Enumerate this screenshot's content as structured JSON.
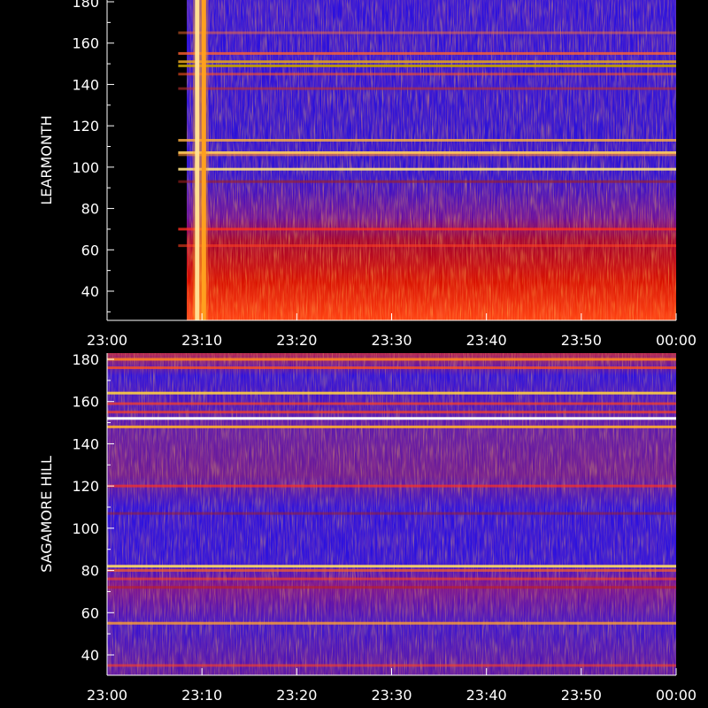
{
  "chart_data": [
    {
      "type": "heatmap",
      "name": "learmonth",
      "ylabel": "LEARMONTH",
      "xlim": [
        "23:00",
        "00:00"
      ],
      "ylim": [
        25,
        180
      ],
      "x_ticks": [
        "23:00",
        "23:10",
        "23:20",
        "23:30",
        "23:40",
        "23:50",
        "00:00"
      ],
      "y_ticks": [
        40,
        60,
        80,
        100,
        120,
        140,
        160,
        180
      ],
      "colors": {
        "low": "#2a0fd8",
        "mid": "#c00000",
        "high": "#ffa020",
        "peak": "#ffffd0"
      },
      "no_data_until": "23:07.5",
      "burst_times": [
        "23:09.5",
        "23:10.2"
      ],
      "bands": [
        {
          "freq": 165,
          "color": "#ff7030",
          "opacity": 0.5
        },
        {
          "freq": 155,
          "color": "#ff6030",
          "opacity": 0.8
        },
        {
          "freq": 151,
          "color": "#e0a020",
          "opacity": 0.9
        },
        {
          "freq": 149,
          "color": "#c0a000",
          "opacity": 0.9
        },
        {
          "freq": 145,
          "color": "#ff5020",
          "opacity": 0.6
        },
        {
          "freq": 138,
          "color": "#c03030",
          "opacity": 0.6
        },
        {
          "freq": 113,
          "color": "#ffb040",
          "opacity": 0.8
        },
        {
          "freq": 107,
          "color": "#ffd060",
          "opacity": 0.9
        },
        {
          "freq": 106,
          "color": "#ff9030",
          "opacity": 0.6
        },
        {
          "freq": 99,
          "color": "#ffe080",
          "opacity": 0.9
        },
        {
          "freq": 93,
          "color": "#a02020",
          "opacity": 0.6
        },
        {
          "freq": 70,
          "color": "#ff3020",
          "opacity": 0.8
        },
        {
          "freq": 62,
          "color": "#ff4020",
          "opacity": 0.6
        }
      ]
    },
    {
      "type": "heatmap",
      "name": "sagamore-hill",
      "ylabel": "SAGAMORE  HILL",
      "xlim": [
        "23:00",
        "00:00"
      ],
      "ylim": [
        25,
        180
      ],
      "x_ticks": [
        "23:00",
        "23:10",
        "23:20",
        "23:30",
        "23:40",
        "23:50",
        "00:00"
      ],
      "y_ticks": [
        40,
        60,
        80,
        100,
        120,
        140,
        160,
        180
      ],
      "colors": {
        "low": "#2a0fd8",
        "mid": "#c00000",
        "high": "#ffa020",
        "peak": "#ffffd0"
      },
      "bands": [
        {
          "freq": 180,
          "color": "#ff8020",
          "opacity": 0.9
        },
        {
          "freq": 176,
          "color": "#ff5020",
          "opacity": 0.8
        },
        {
          "freq": 164,
          "color": "#ffd040",
          "opacity": 0.9
        },
        {
          "freq": 159,
          "color": "#ff4020",
          "opacity": 0.7
        },
        {
          "freq": 155,
          "color": "#ff4020",
          "opacity": 0.7
        },
        {
          "freq": 152,
          "color": "#ffffff",
          "opacity": 1.0
        },
        {
          "freq": 148,
          "color": "#ffb030",
          "opacity": 0.9
        },
        {
          "freq": 120,
          "color": "#ff3020",
          "opacity": 0.7
        },
        {
          "freq": 107,
          "color": "#a02020",
          "opacity": 0.5
        },
        {
          "freq": 82,
          "color": "#ffe060",
          "opacity": 0.9
        },
        {
          "freq": 80,
          "color": "#ff6020",
          "opacity": 0.7
        },
        {
          "freq": 76,
          "color": "#ff4020",
          "opacity": 0.6
        },
        {
          "freq": 72,
          "color": "#c02020",
          "opacity": 0.6
        },
        {
          "freq": 55,
          "color": "#ffa030",
          "opacity": 0.8
        },
        {
          "freq": 35,
          "color": "#ff4020",
          "opacity": 0.6
        }
      ]
    }
  ]
}
